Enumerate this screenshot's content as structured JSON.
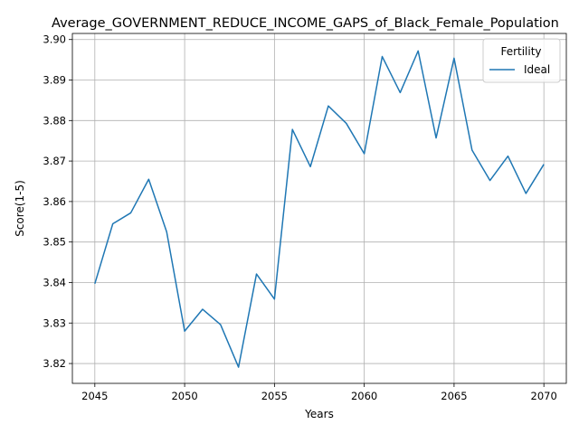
{
  "chart_data": {
    "type": "line",
    "title": "Average_GOVERNMENT_REDUCE_INCOME_GAPS_of_Black_Female_Population",
    "xlabel": "Years",
    "ylabel": "Score(1-5)",
    "xlim": [
      2043.75,
      2071.25
    ],
    "ylim": [
      3.8151,
      3.9015
    ],
    "x_ticks": [
      2045,
      2050,
      2055,
      2060,
      2065,
      2070
    ],
    "y_ticks": [
      3.82,
      3.83,
      3.84,
      3.85,
      3.86,
      3.87,
      3.88,
      3.89,
      3.9
    ],
    "y_tick_labels": [
      "3.82",
      "3.83",
      "3.84",
      "3.85",
      "3.86",
      "3.87",
      "3.88",
      "3.89",
      "3.90"
    ],
    "grid": true,
    "legend": {
      "title": "Fertility",
      "placement": "top-right"
    },
    "series": [
      {
        "name": "Ideal",
        "color": "#1f77b4",
        "x": [
          2045,
          2046,
          2047,
          2048,
          2049,
          2050,
          2051,
          2052,
          2053,
          2054,
          2055,
          2056,
          2057,
          2058,
          2059,
          2060,
          2061,
          2062,
          2063,
          2064,
          2065,
          2066,
          2067,
          2068,
          2069,
          2070
        ],
        "values": [
          3.8397,
          3.8545,
          3.8572,
          3.8655,
          3.8525,
          3.828,
          3.8334,
          3.8296,
          3.8191,
          3.8421,
          3.8359,
          3.8778,
          3.8686,
          3.8836,
          3.8793,
          3.8718,
          3.8958,
          3.8869,
          3.8972,
          3.8757,
          3.8954,
          3.8727,
          3.8652,
          3.8712,
          3.862,
          3.8692
        ]
      }
    ]
  }
}
